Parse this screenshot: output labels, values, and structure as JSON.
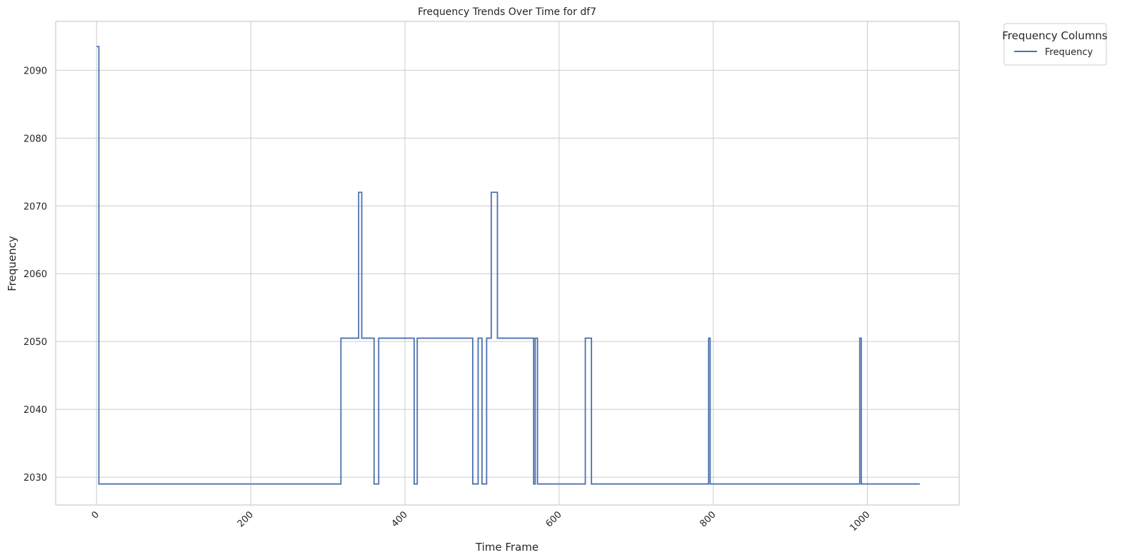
{
  "chart_data": {
    "type": "line",
    "title": "Frequency Trends Over Time for df7",
    "xlabel": "Time Frame",
    "ylabel": "Frequency",
    "xlim": [
      -53,
      1119
    ],
    "ylim": [
      2025.9,
      2097.2
    ],
    "x_ticks": [
      0,
      200,
      400,
      600,
      800,
      1000
    ],
    "x_tick_labels": [
      "0",
      "200",
      "400",
      "600",
      "800",
      "1000"
    ],
    "y_ticks": [
      2030,
      2040,
      2050,
      2060,
      2070,
      2080,
      2090
    ],
    "y_tick_labels": [
      "2030",
      "2040",
      "2050",
      "2060",
      "2070",
      "2080",
      "2090"
    ],
    "grid": true,
    "legend": {
      "title": "Frequency Columns",
      "placement": "outside-top-right",
      "entries": [
        "Frequency"
      ]
    },
    "series": [
      {
        "name": "Frequency",
        "color": "#4c72b0",
        "step": true,
        "x": [
          0,
          3,
          317,
          336,
          340,
          344,
          360,
          366,
          412,
          416,
          488,
          495,
          500,
          506,
          512,
          520,
          532,
          567,
          569,
          572,
          634,
          642,
          794,
          796,
          990,
          992,
          1068
        ],
        "y": [
          2093.5,
          2029,
          2050.5,
          2050.5,
          2072,
          2050.5,
          2029,
          2050.5,
          2029,
          2050.5,
          2029,
          2050.5,
          2029,
          2050.5,
          2072,
          2050.5,
          2050.5,
          2029,
          2050.5,
          2029,
          2050.5,
          2029,
          2050.5,
          2029,
          2050.5,
          2029,
          2029
        ]
      }
    ]
  }
}
